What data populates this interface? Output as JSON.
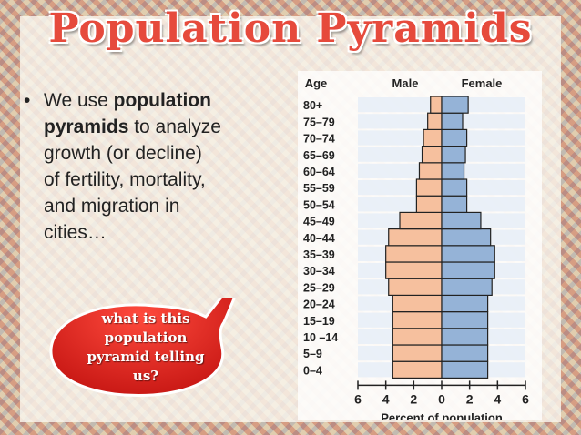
{
  "slide": {
    "title": "Population Pyramids",
    "bullet": {
      "lines": [
        [
          "We use ",
          "population"
        ],
        [
          "pyramids",
          " to analyze"
        ],
        [
          "growth (or decline)"
        ],
        [
          "of fertility, mortality,"
        ],
        [
          "and migration in"
        ],
        [
          "cities…"
        ]
      ]
    },
    "callout": {
      "lines": [
        "what is this",
        "population",
        "pyramid telling",
        "us?"
      ]
    }
  },
  "chart_data": {
    "type": "bar",
    "headers": {
      "age": "Age",
      "male": "Male",
      "female": "Female"
    },
    "categories": [
      "0–4",
      "5–9",
      "10 –14",
      "15–19",
      "20–24",
      "25–29",
      "30–34",
      "35–39",
      "40–44",
      "45–49",
      "50–54",
      "55–59",
      "60–64",
      "65–69",
      "70–74",
      "75–79",
      "80+"
    ],
    "series": [
      {
        "name": "Male",
        "values": [
          -3.5,
          -3.5,
          -3.5,
          -3.5,
          -3.5,
          -3.8,
          -4.0,
          -4.0,
          -3.8,
          -3.0,
          -1.8,
          -1.8,
          -1.6,
          -1.4,
          -1.3,
          -1.0,
          -0.8
        ]
      },
      {
        "name": "Female",
        "values": [
          3.3,
          3.3,
          3.3,
          3.3,
          3.3,
          3.6,
          3.8,
          3.8,
          3.5,
          2.8,
          1.8,
          1.8,
          1.6,
          1.7,
          1.8,
          1.5,
          1.9
        ]
      }
    ],
    "xticks": [
      "6",
      "4",
      "2",
      "0",
      "2",
      "4",
      "6"
    ],
    "xlim": [
      -6,
      6
    ],
    "xlabel": "Percent of population",
    "colors": {
      "male": "#f6c09e",
      "female": "#95b3d7",
      "stroke": "#222222"
    }
  }
}
